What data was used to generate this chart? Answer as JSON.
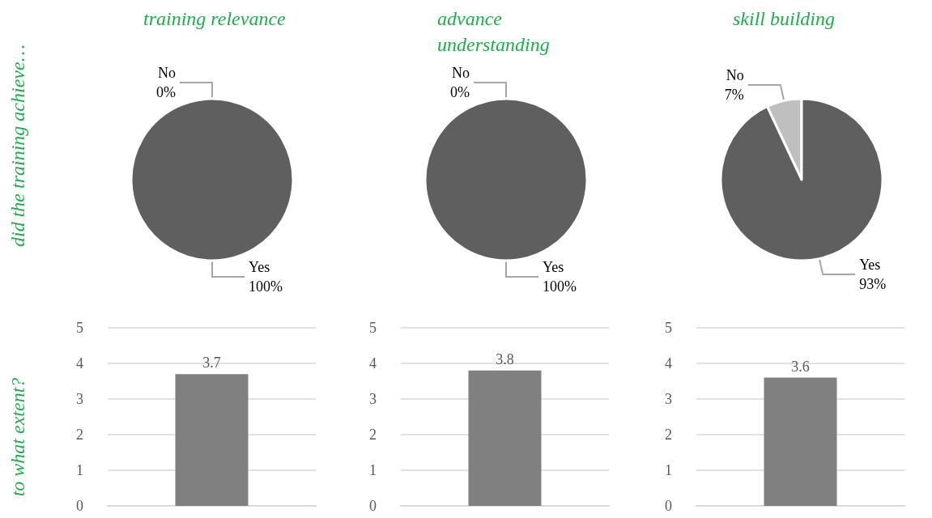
{
  "chart_data": [
    {
      "type": "pie",
      "title": "training relevance",
      "ylabel": "did the training achieve…",
      "categories": [
        "No",
        "Yes"
      ],
      "values": [
        0,
        100
      ],
      "value_labels": [
        "0%",
        "100%"
      ],
      "colors": [
        "#bfbfbf",
        "#5f5f5f"
      ]
    },
    {
      "type": "pie",
      "title": "advance understanding",
      "categories": [
        "No",
        "Yes"
      ],
      "values": [
        0,
        100
      ],
      "value_labels": [
        "0%",
        "100%"
      ],
      "colors": [
        "#bfbfbf",
        "#5f5f5f"
      ]
    },
    {
      "type": "pie",
      "title": "skill building",
      "categories": [
        "No",
        "Yes"
      ],
      "values": [
        7,
        93
      ],
      "value_labels": [
        "7%",
        "93%"
      ],
      "colors": [
        "#bfbfbf",
        "#5f5f5f"
      ]
    },
    {
      "type": "bar",
      "ylabel": "to what extent?",
      "categories": [
        null
      ],
      "values": [
        3.7
      ],
      "color": "#808080",
      "ylim": [
        0,
        5
      ],
      "yticks": [
        0,
        1,
        2,
        3,
        4,
        5
      ],
      "grid": "y",
      "data_labels": true
    },
    {
      "type": "bar",
      "categories": [
        null
      ],
      "values": [
        3.8
      ],
      "color": "#808080",
      "ylim": [
        0,
        5
      ],
      "yticks": [
        0,
        1,
        2,
        3,
        4,
        5
      ],
      "grid": "y",
      "data_labels": true
    },
    {
      "type": "bar",
      "categories": [
        null
      ],
      "values": [
        3.6
      ],
      "color": "#808080",
      "ylim": [
        0,
        5
      ],
      "yticks": [
        0,
        1,
        2,
        3,
        4,
        5
      ],
      "grid": "y",
      "data_labels": true
    }
  ]
}
